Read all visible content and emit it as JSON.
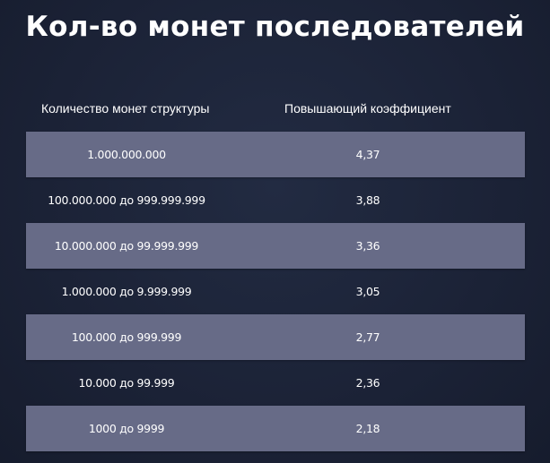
{
  "title": "Кол-во монет последователей",
  "headers": [
    "Количество монет структуры",
    "Повышающий коэффициент"
  ],
  "rows": [
    {
      "coins": "1.000.000.000",
      "coef": "4,37"
    },
    {
      "coins": "100.000.000 до 999.999.999",
      "coef": "3,88"
    },
    {
      "coins": "10.000.000 до 99.999.999",
      "coef": "3,36"
    },
    {
      "coins": "1.000.000 до 9.999.999",
      "coef": "3,05"
    },
    {
      "coins": "100.000 до 999.999",
      "coef": "2,77"
    },
    {
      "coins": "10.000 до 99.999",
      "coef": "2,36"
    },
    {
      "coins": "1000 до 9999",
      "coef": "2,18"
    }
  ],
  "colors": {
    "background": "#1b2236",
    "shaded_row": "#676b87",
    "text": "#ffffff"
  }
}
